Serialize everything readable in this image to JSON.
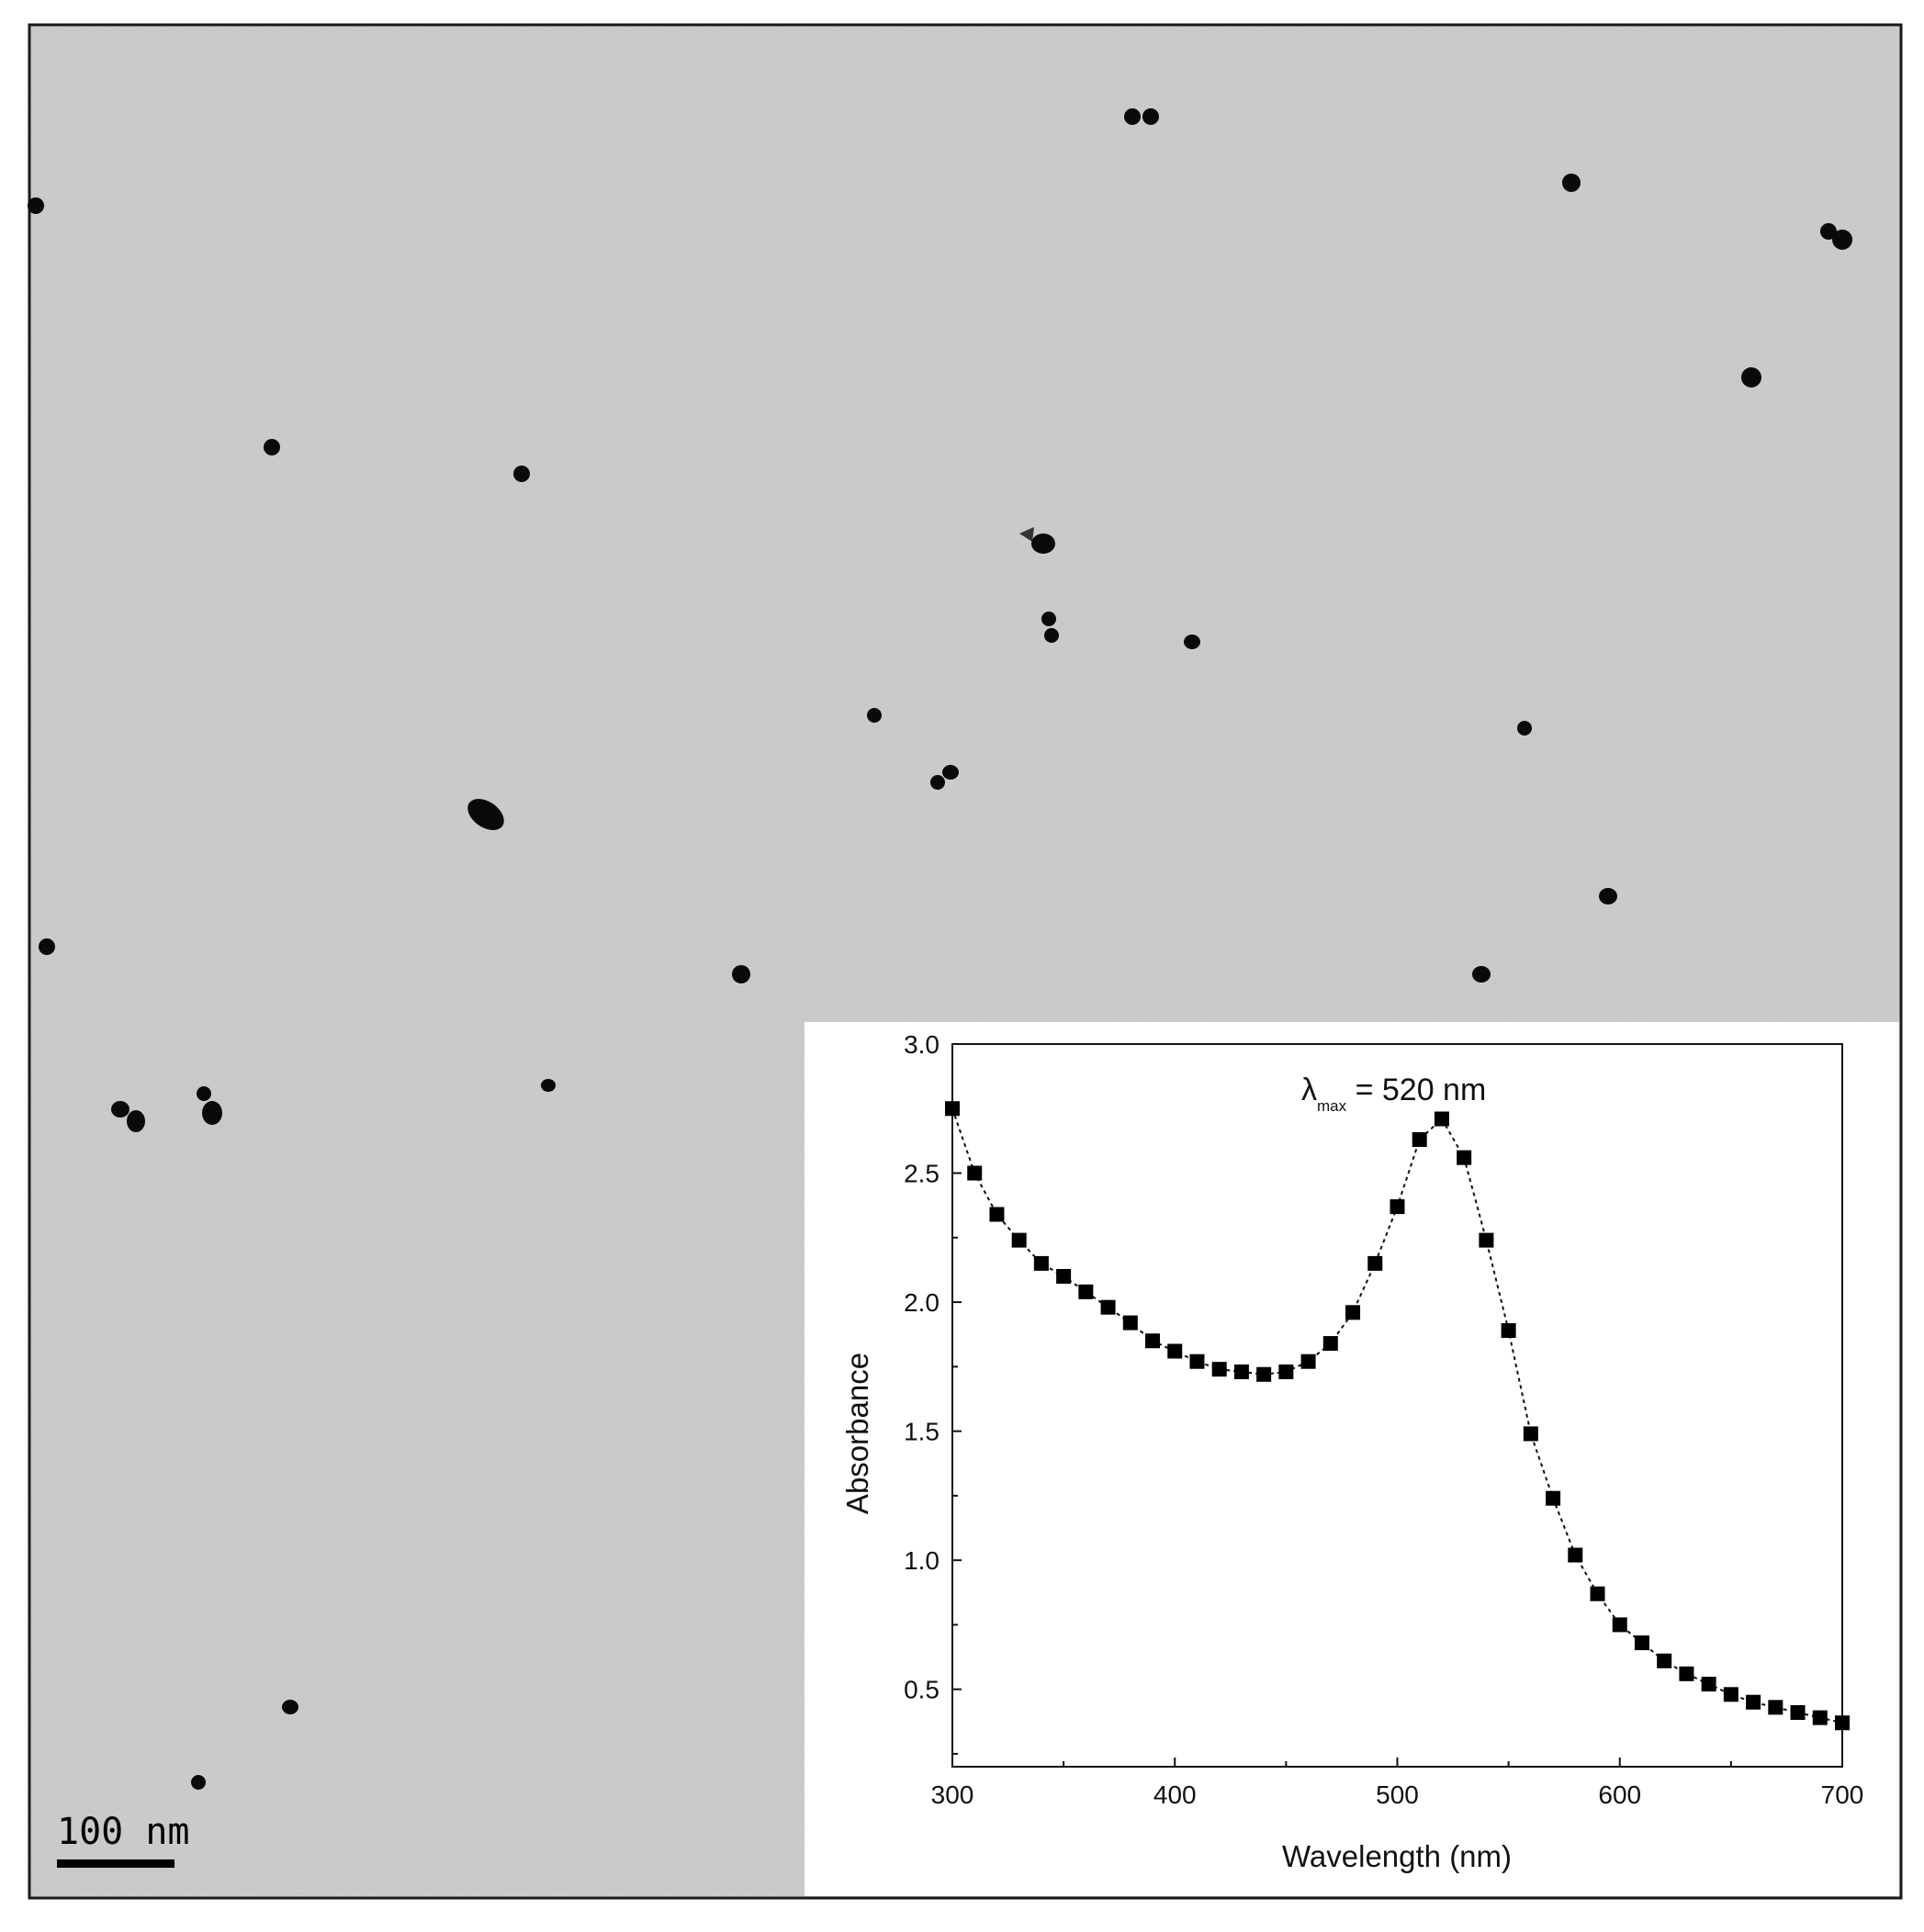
{
  "micrograph": {
    "scale_bar_label": "100 nm",
    "background_color": "#c4c4c4",
    "particle_color": "#0a0a0a"
  },
  "chart_data": {
    "type": "scatter",
    "style": "square markers connected by dotted line",
    "annotation": {
      "symbol": "λ",
      "subscript": "max",
      "text": " = 520 nm"
    },
    "xlabel": "Wavelength (nm)",
    "ylabel": "Absorbance",
    "xlim": [
      300,
      700
    ],
    "ylim": [
      0.2,
      3.0
    ],
    "xticks": [
      300,
      400,
      500,
      600,
      700
    ],
    "yticks": [
      0.5,
      1.0,
      1.5,
      2.0,
      2.5,
      3.0
    ],
    "xtick_labels": [
      "300",
      "400",
      "500",
      "600",
      "700"
    ],
    "ytick_labels": [
      "0.5",
      "1.0",
      "1.5",
      "2.0",
      "2.5",
      "3.0"
    ],
    "grid": false,
    "marker_color": "#000000",
    "x": [
      300,
      310,
      320,
      330,
      340,
      350,
      360,
      370,
      380,
      390,
      400,
      410,
      420,
      430,
      440,
      450,
      460,
      470,
      480,
      490,
      500,
      510,
      520,
      530,
      540,
      550,
      560,
      570,
      580,
      590,
      600,
      610,
      620,
      630,
      640,
      650,
      660,
      670,
      680,
      690,
      700
    ],
    "y": [
      2.75,
      2.5,
      2.34,
      2.24,
      2.15,
      2.1,
      2.04,
      1.98,
      1.92,
      1.85,
      1.81,
      1.77,
      1.74,
      1.73,
      1.72,
      1.73,
      1.77,
      1.84,
      1.96,
      2.15,
      2.37,
      2.63,
      2.71,
      2.56,
      2.24,
      1.89,
      1.49,
      1.24,
      1.02,
      0.87,
      0.75,
      0.68,
      0.61,
      0.56,
      0.52,
      0.48,
      0.45,
      0.43,
      0.41,
      0.39,
      0.37
    ]
  }
}
